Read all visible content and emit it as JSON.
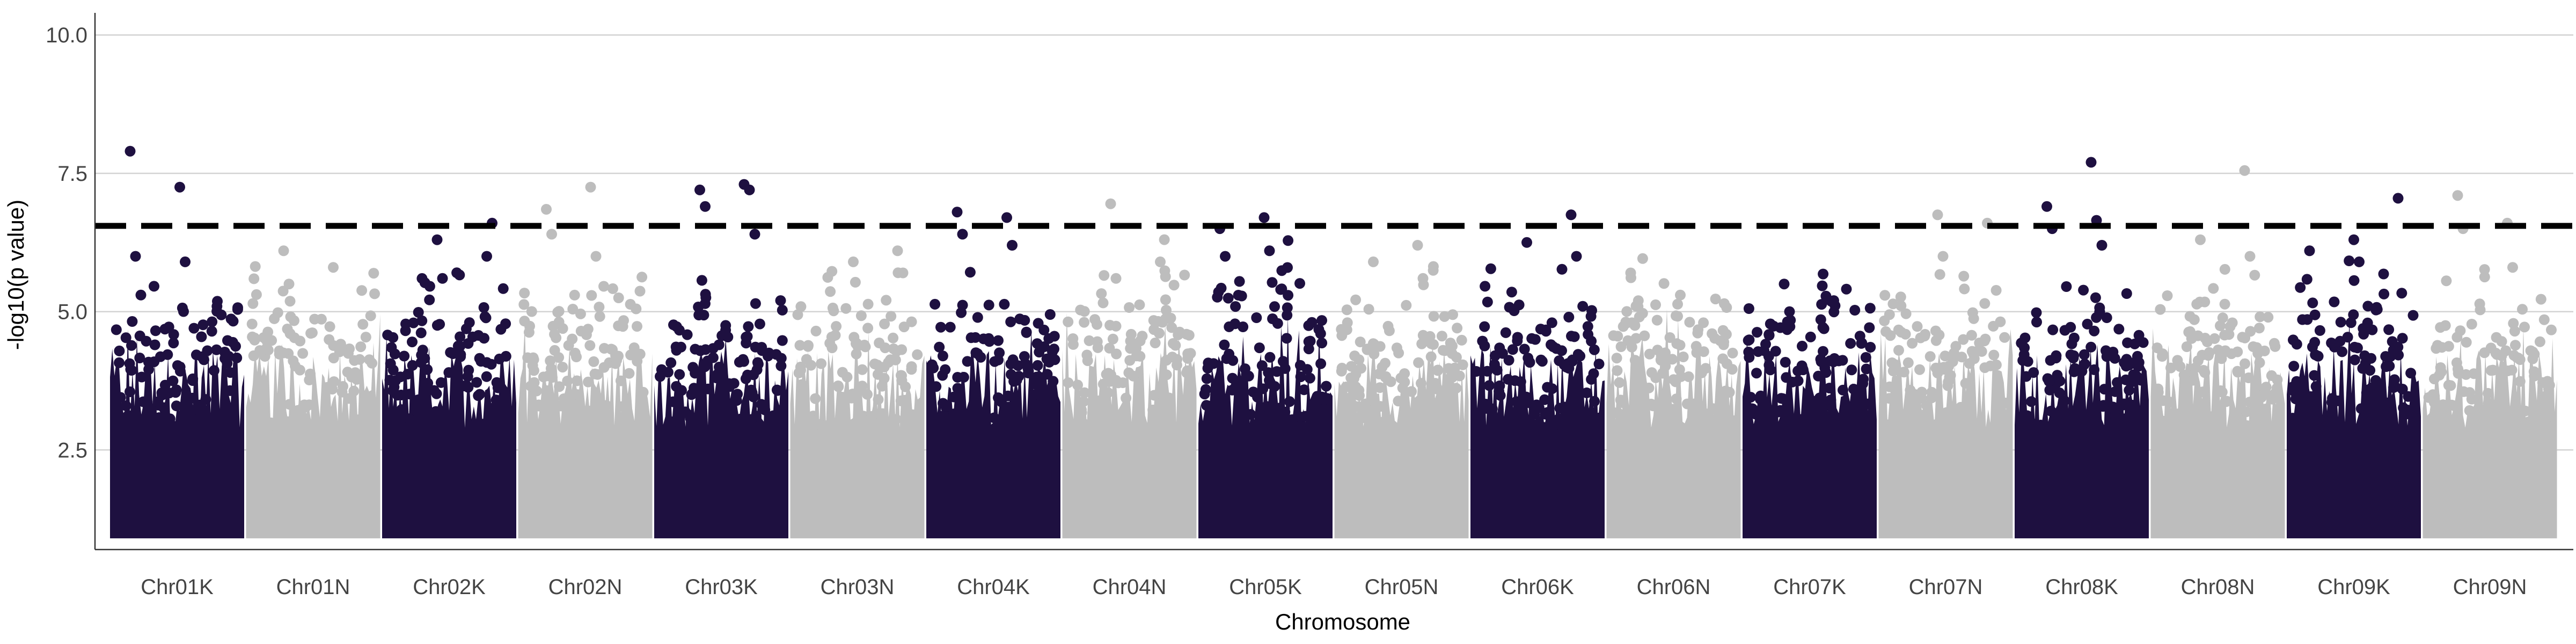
{
  "chart_data": {
    "type": "scatter",
    "title": "",
    "xlabel": "Chromosome",
    "ylabel": "-log10(p value)",
    "ylim": [
      0.7,
      10.4
    ],
    "yticks": [
      2.5,
      5.0,
      7.5,
      10.0
    ],
    "ytick_labels": [
      "2.5",
      "5.0",
      "7.5",
      "10.0"
    ],
    "grid": "horizontal major lines",
    "legend": "none",
    "significance_threshold": 6.55,
    "threshold_style": "dashed",
    "colors": {
      "dark": "#1e1040",
      "light": "#bdbdbd",
      "grid": "#d3d3d3",
      "threshold": "#000000"
    },
    "chromosomes": [
      {
        "label": "Chr01K",
        "color": "dark",
        "peaks": [
          7.9,
          7.25,
          6.0,
          5.9,
          5.3
        ]
      },
      {
        "label": "Chr01N",
        "color": "light",
        "peaks": [
          6.1,
          5.8,
          5.5
        ]
      },
      {
        "label": "Chr02K",
        "color": "dark",
        "peaks": [
          6.3,
          6.0,
          5.6,
          6.6
        ]
      },
      {
        "label": "Chr02N",
        "color": "light",
        "peaks": [
          7.25,
          6.85,
          6.0,
          6.4
        ]
      },
      {
        "label": "Chr03K",
        "color": "dark",
        "peaks": [
          7.3,
          7.2,
          7.2,
          6.9,
          6.4
        ]
      },
      {
        "label": "Chr03N",
        "color": "light",
        "peaks": [
          6.1,
          5.9,
          5.7
        ]
      },
      {
        "label": "Chr04K",
        "color": "dark",
        "peaks": [
          6.8,
          6.7,
          6.4,
          6.2
        ]
      },
      {
        "label": "Chr04N",
        "color": "light",
        "peaks": [
          6.95,
          5.9,
          5.6
        ]
      },
      {
        "label": "Chr05K",
        "color": "dark",
        "peaks": [
          6.7,
          6.5,
          6.1,
          6.0
        ]
      },
      {
        "label": "Chr05N",
        "color": "light",
        "peaks": [
          6.2,
          5.9,
          5.6
        ]
      },
      {
        "label": "Chr06K",
        "color": "dark",
        "peaks": [
          6.75,
          6.25,
          6.0
        ]
      },
      {
        "label": "Chr06N",
        "color": "light",
        "peaks": [
          5.7,
          5.3,
          5.1
        ]
      },
      {
        "label": "Chr07K",
        "color": "dark",
        "peaks": [
          5.5,
          5.2,
          5.0
        ]
      },
      {
        "label": "Chr07N",
        "color": "light",
        "peaks": [
          6.75,
          6.6,
          6.0
        ]
      },
      {
        "label": "Chr08K",
        "color": "dark",
        "peaks": [
          7.7,
          6.9,
          6.65,
          6.5,
          6.2
        ]
      },
      {
        "label": "Chr08N",
        "color": "light",
        "peaks": [
          7.55,
          6.3,
          6.0
        ]
      },
      {
        "label": "Chr09K",
        "color": "dark",
        "peaks": [
          7.05,
          6.3,
          6.1,
          5.9
        ]
      },
      {
        "label": "Chr09N",
        "color": "light",
        "peaks": [
          7.1,
          6.6,
          6.5,
          5.8
        ]
      }
    ]
  }
}
